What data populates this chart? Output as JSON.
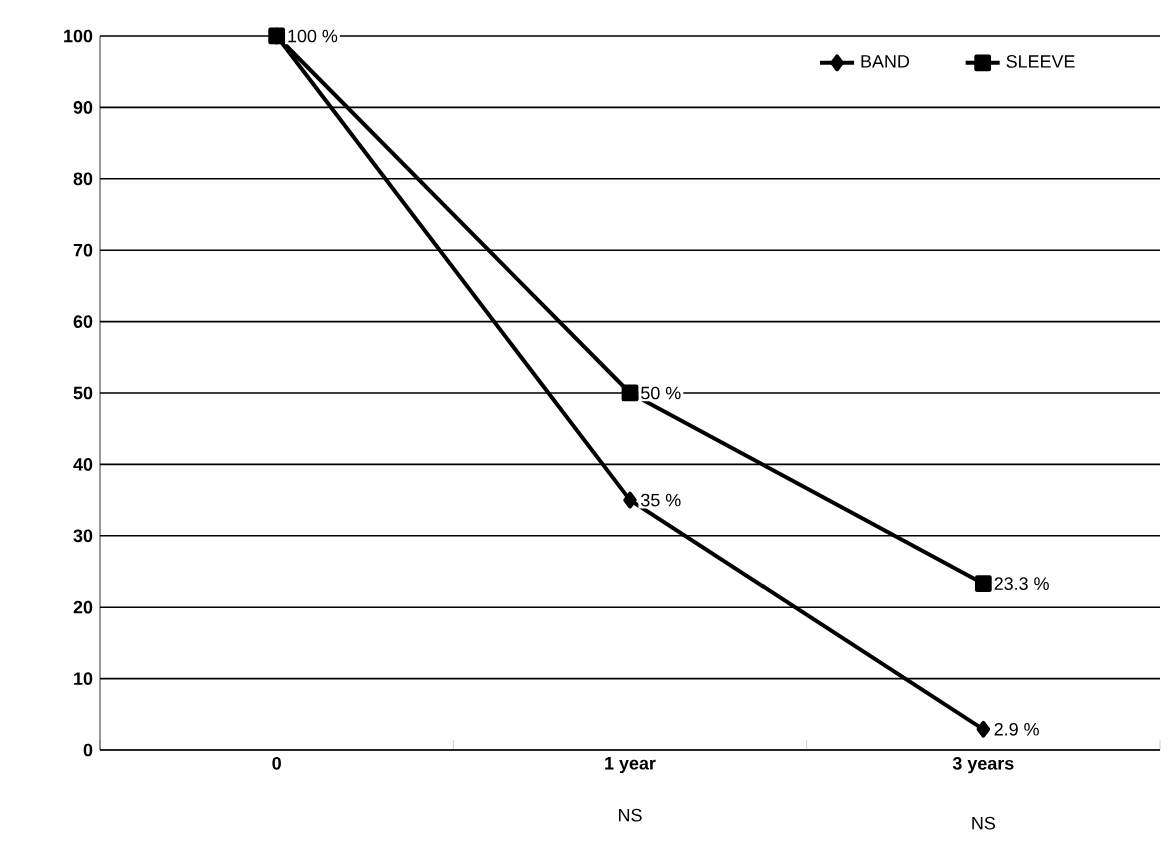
{
  "chart_data": {
    "type": "line",
    "categories": [
      "0",
      "1 year",
      "3 years"
    ],
    "series": [
      {
        "name": "BAND",
        "color": "#000000",
        "marker": "diamond",
        "values": [
          100,
          35,
          2.9
        ],
        "value_labels": [
          null,
          "35 %",
          "2.9 %"
        ]
      },
      {
        "name": "SLEEVE",
        "color": "#000000",
        "marker": "square",
        "values": [
          100,
          50,
          23.3
        ],
        "value_labels": [
          "100 %",
          "50 %",
          "23.3 %"
        ]
      }
    ],
    "ylim": [
      0,
      100
    ],
    "yticks": [
      0,
      10,
      20,
      30,
      40,
      50,
      60,
      70,
      80,
      90,
      100
    ],
    "grid": "y",
    "legend": "top right",
    "line_style": "solid",
    "annotations": [
      "NS",
      "NS"
    ]
  }
}
